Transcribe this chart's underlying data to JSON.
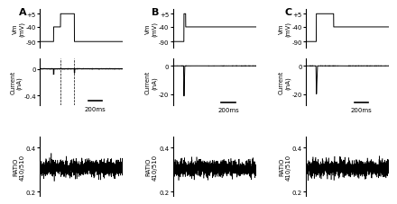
{
  "panels": [
    "A",
    "B",
    "C"
  ],
  "background_color": "#ffffff",
  "text_color": "#000000",
  "line_color": "#000000",
  "vm_ylim_A": [
    -110,
    20
  ],
  "vm_yticks_A": [
    -90,
    -40,
    5
  ],
  "vm_ylabels_A": [
    "-90",
    "-40",
    "+5"
  ],
  "vm_ylim_BC": [
    -110,
    20
  ],
  "vm_yticks_BC": [
    -90,
    -40,
    5
  ],
  "vm_ylabels_BC": [
    "-90",
    "-40",
    "+5"
  ],
  "current_ylim_A": [
    -0.55,
    0.15
  ],
  "current_yticks_A": [
    -0.4,
    0
  ],
  "current_ylabels_A": [
    "-0.4",
    "0"
  ],
  "current_ylim_BC": [
    -28,
    5
  ],
  "current_yticks_BC": [
    -20,
    0
  ],
  "current_ylabels_BC": [
    "-20",
    "0"
  ],
  "ratio_ylim": [
    0.18,
    0.45
  ],
  "ratio_yticks": [
    0.2,
    0.4
  ],
  "ratio_ylabels": [
    "0.2",
    "0.4"
  ],
  "total_time": 1200,
  "scale_bar_ms": 200,
  "noise_seed_A": 42,
  "noise_seed_B": 43,
  "noise_seed_C": 44,
  "vm_ylabel": "Vm\n(mV)",
  "current_ylabel_A": "Current\n(nA)",
  "current_ylabel_BC": "Current\n(nA)",
  "ratio_ylabel": "RATIO\n410/510",
  "scale_label": "200ms"
}
